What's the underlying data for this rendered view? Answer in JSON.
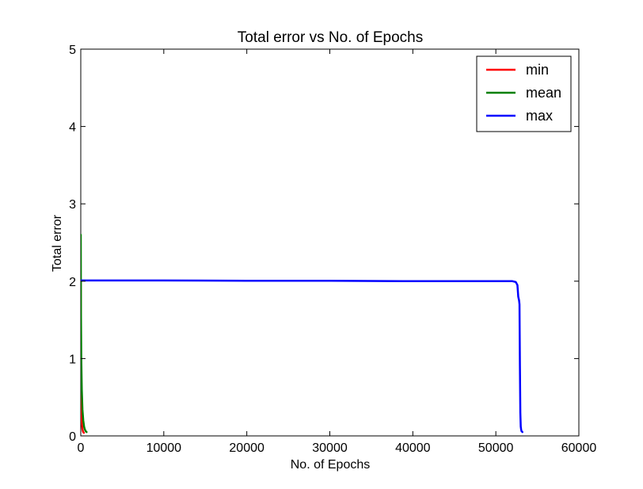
{
  "chart_data": {
    "type": "line",
    "title": "Total error vs No. of Epochs",
    "xlabel": "No. of Epochs",
    "ylabel": "Total error",
    "xlim": [
      0,
      60000
    ],
    "ylim": [
      0,
      5
    ],
    "xticks": [
      0,
      10000,
      20000,
      30000,
      40000,
      50000,
      60000
    ],
    "yticks": [
      0,
      1,
      2,
      3,
      4,
      5
    ],
    "grid": false,
    "legend": "top-right",
    "series": [
      {
        "name": "min",
        "color": "#ff0000",
        "x": [
          0,
          10,
          30,
          60,
          100,
          150,
          200,
          260,
          320,
          380
        ],
        "y": [
          2.0,
          1.2,
          0.7,
          0.42,
          0.26,
          0.15,
          0.09,
          0.06,
          0.045,
          0.04
        ]
      },
      {
        "name": "mean",
        "color": "#008000",
        "x": [
          0,
          20,
          60,
          120,
          200,
          300,
          400,
          500,
          600,
          700
        ],
        "y": [
          2.6,
          1.6,
          1.0,
          0.6,
          0.34,
          0.2,
          0.12,
          0.08,
          0.06,
          0.05
        ]
      },
      {
        "name": "max",
        "color": "#0000ff",
        "x": [
          0,
          5000,
          10000,
          20000,
          30000,
          40000,
          50000,
          52000,
          52400,
          52600,
          52700,
          52800,
          52850,
          52900,
          52950,
          53000,
          53050,
          53100,
          53200
        ],
        "y": [
          2.01,
          2.01,
          2.01,
          2.005,
          2.005,
          2.0,
          2.0,
          2.0,
          1.99,
          1.95,
          1.8,
          1.75,
          1.7,
          0.9,
          0.3,
          0.12,
          0.08,
          0.06,
          0.05
        ]
      }
    ]
  }
}
